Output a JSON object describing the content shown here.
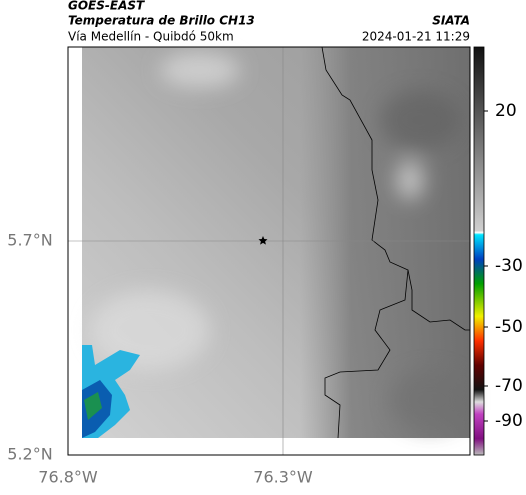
{
  "header": {
    "title": "GOES-EAST",
    "subtitle": "Temperatura de Brillo CH13",
    "region": "Vía Medellín - Quibdó 50km",
    "source": "SIATA",
    "datetime": "2024-01-21 11:29"
  },
  "map": {
    "lat_labels": [
      "5.7°N",
      "5.2°N"
    ],
    "lon_labels": [
      "76.8°W",
      "76.3°W"
    ]
  },
  "colorbar": {
    "ticks": [
      20,
      -30,
      -50,
      -70,
      -90
    ]
  }
}
